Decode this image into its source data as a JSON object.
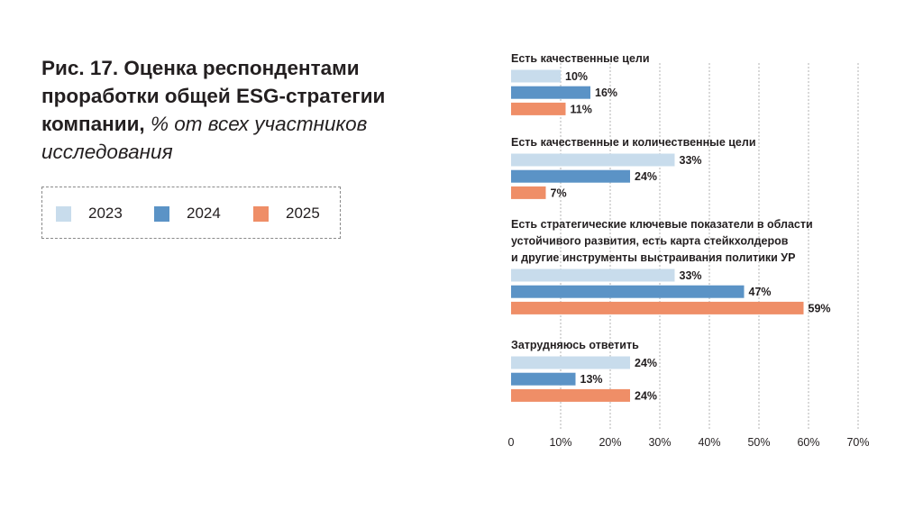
{
  "title": {
    "main": "Рис. 17. Оценка респондентами проработки общей ESG-стратегии компании,",
    "subtitle": "% от всех участников исследования"
  },
  "colors": {
    "2023": "#c8dcec",
    "2024": "#5b93c6",
    "2025": "#ef8e67",
    "grid": "#b3b3b3"
  },
  "chart_data": {
    "type": "bar",
    "orientation": "horizontal",
    "title": "Рис. 17. Оценка респондентами проработки общей ESG-стратегии компании, % от всех участников исследования",
    "categories": [
      [
        "Есть качественные цели"
      ],
      [
        "Есть качественные и количественные цели"
      ],
      [
        "Есть стратегические ключевые показатели в области",
        "устойчивого развития, есть карта стейкхолдеров",
        "и другие инструменты выстраивания политики УР"
      ],
      [
        "Затрудняюсь ответить"
      ]
    ],
    "series": [
      {
        "name": "2023",
        "values": [
          10,
          33,
          33,
          24
        ],
        "labels": [
          "10%",
          "33%",
          "33%",
          "24%"
        ]
      },
      {
        "name": "2024",
        "values": [
          16,
          24,
          47,
          13
        ],
        "labels": [
          "16%",
          "24%",
          "47%",
          "13%"
        ]
      },
      {
        "name": "2025",
        "values": [
          11,
          7,
          59,
          24
        ],
        "labels": [
          "11%",
          "7%",
          "59%",
          "24%"
        ]
      }
    ],
    "xlim": [
      0,
      70
    ],
    "xticks": [
      "0",
      "10%",
      "20%",
      "30%",
      "40%",
      "50%",
      "60%",
      "70%"
    ],
    "grid": true,
    "legend": "left"
  }
}
